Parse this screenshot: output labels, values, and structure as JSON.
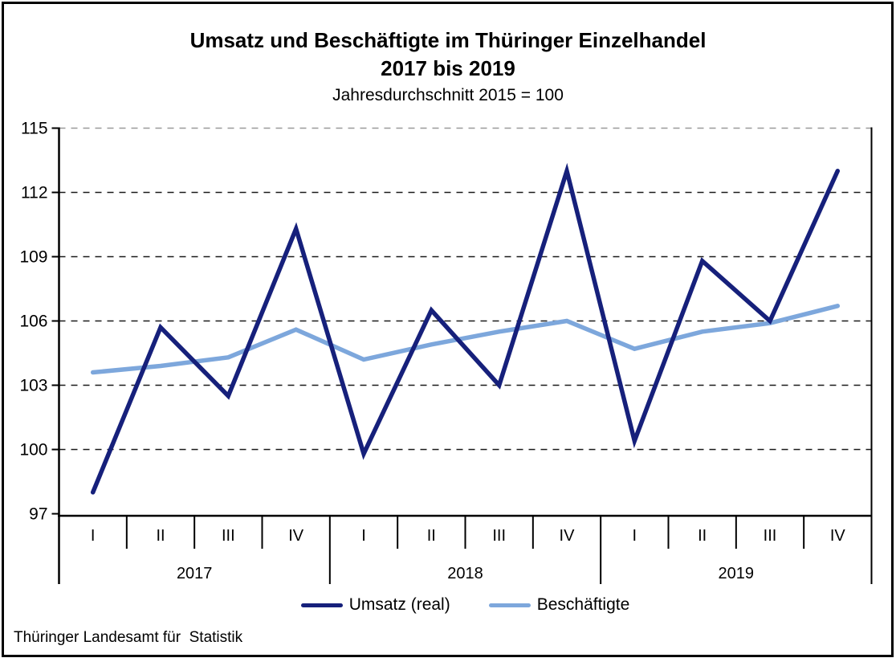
{
  "title": {
    "line1": "Umsatz und Beschäftigte im Thüringer Einzelhandel",
    "line2": "2017 bis 2019",
    "subtitle": "Jahresdurchschnitt 2015 = 100"
  },
  "footer": {
    "source": "Thüringer Landesamt für  Statistik"
  },
  "colors": {
    "umsatz_line": "#16207B",
    "beschaeftigte_line": "#7DA7DC",
    "axis": "#000000",
    "gridline": "#1a1a1a",
    "top_gridline": "#999999",
    "background": "#ffffff"
  },
  "chart_data": {
    "type": "line",
    "title": "Umsatz und Beschäftigte im Thüringer Einzelhandel 2017 bis 2019",
    "subtitle": "Jahresdurchschnitt 2015 = 100",
    "x_groups": [
      {
        "year": "2017",
        "quarters": [
          "I",
          "II",
          "III",
          "IV"
        ]
      },
      {
        "year": "2018",
        "quarters": [
          "I",
          "II",
          "III",
          "IV"
        ]
      },
      {
        "year": "2019",
        "quarters": [
          "I",
          "II",
          "III",
          "IV"
        ]
      }
    ],
    "ylim": [
      97,
      115
    ],
    "yticks": [
      97,
      100,
      103,
      106,
      109,
      112,
      115
    ],
    "grid": "horizontal-dashed",
    "legend_position": "bottom",
    "series": [
      {
        "name": "Umsatz (real)",
        "color": "#16207B",
        "values": [
          98.0,
          105.7,
          102.5,
          110.3,
          99.8,
          106.5,
          103.0,
          113.0,
          100.4,
          108.8,
          106.0,
          113.0
        ]
      },
      {
        "name": "Beschäftigte",
        "color": "#7DA7DC",
        "values": [
          103.6,
          103.9,
          104.3,
          105.6,
          104.2,
          104.9,
          105.5,
          106.0,
          104.7,
          105.5,
          105.9,
          106.7
        ]
      }
    ]
  }
}
